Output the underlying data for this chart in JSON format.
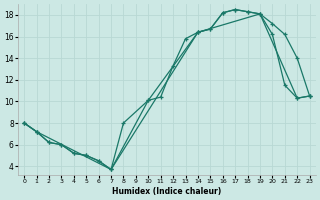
{
  "xlabel": "Humidex (Indice chaleur)",
  "bg_color": "#cce8e4",
  "grid_color": "#b8d8d4",
  "line_color": "#1a7868",
  "xlim": [
    -0.5,
    23.5
  ],
  "ylim": [
    3.2,
    19.0
  ],
  "xticks": [
    0,
    1,
    2,
    3,
    4,
    5,
    6,
    7,
    8,
    9,
    10,
    11,
    12,
    13,
    14,
    15,
    16,
    17,
    18,
    19,
    20,
    21,
    22,
    23
  ],
  "yticks": [
    4,
    6,
    8,
    10,
    12,
    14,
    16,
    18
  ],
  "curve1_x": [
    0,
    1,
    2,
    3,
    4,
    5,
    6,
    7,
    8,
    10,
    11,
    12,
    13,
    14,
    15,
    16,
    17,
    18,
    19,
    20,
    21,
    22,
    23
  ],
  "curve1_y": [
    8.0,
    7.2,
    6.2,
    6.0,
    5.2,
    5.0,
    4.5,
    3.7,
    8.0,
    10.1,
    10.4,
    13.3,
    15.8,
    16.4,
    16.7,
    18.2,
    18.5,
    18.3,
    18.1,
    17.2,
    16.2,
    14.0,
    10.5
  ],
  "curve2_x": [
    0,
    1,
    2,
    3,
    4,
    5,
    6,
    7,
    14,
    15,
    16,
    17,
    18,
    19,
    20,
    21,
    22,
    23
  ],
  "curve2_y": [
    8.0,
    7.2,
    6.2,
    6.0,
    5.2,
    5.0,
    4.5,
    3.7,
    16.4,
    16.7,
    18.2,
    18.5,
    18.3,
    18.1,
    16.2,
    11.5,
    10.3,
    10.5
  ],
  "curve3_x": [
    0,
    1,
    7,
    10,
    14,
    19,
    22,
    23
  ],
  "curve3_y": [
    8.0,
    7.2,
    3.7,
    10.1,
    16.4,
    18.1,
    10.3,
    10.5
  ]
}
